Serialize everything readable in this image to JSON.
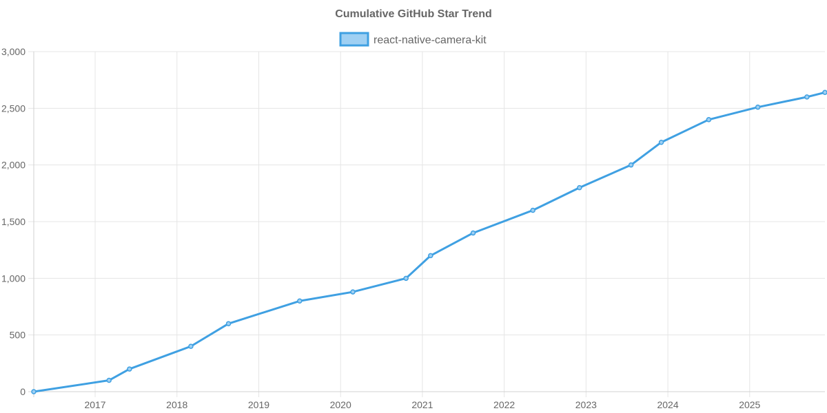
{
  "chart_data": {
    "type": "line",
    "title": "Cumulative GitHub Star Trend",
    "xlabel": "",
    "ylabel": "",
    "grid": true,
    "legend_position": "top-center",
    "xlim": [
      2016.25,
      2025.92
    ],
    "ylim": [
      0,
      3000
    ],
    "y_ticks": [
      0,
      500,
      1000,
      1500,
      2000,
      2500,
      3000
    ],
    "y_tick_labels": [
      "0",
      "500",
      "1,000",
      "1,500",
      "2,000",
      "2,500",
      "3,000"
    ],
    "x_ticks": [
      2017,
      2018,
      2019,
      2020,
      2021,
      2022,
      2023,
      2024,
      2025
    ],
    "x_tick_labels": [
      "2017",
      "2018",
      "2019",
      "2020",
      "2021",
      "2022",
      "2023",
      "2024",
      "2025"
    ],
    "series": [
      {
        "name": "react-native-camera-kit",
        "color": "#3fa0e2",
        "fill_color": "#9fd0f3",
        "x": [
          2016.25,
          2017.17,
          2017.42,
          2018.17,
          2018.63,
          2019.5,
          2020.15,
          2020.8,
          2021.1,
          2021.62,
          2022.35,
          2022.92,
          2023.55,
          2023.92,
          2024.5,
          2025.1,
          2025.7,
          2025.92
        ],
        "values": [
          0,
          100,
          200,
          400,
          600,
          800,
          880,
          1000,
          1200,
          1400,
          1600,
          1800,
          2000,
          2200,
          2400,
          2510,
          2600,
          2640
        ]
      }
    ]
  }
}
